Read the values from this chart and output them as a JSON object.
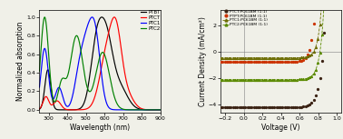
{
  "abs_xlabel": "Wavelength (nm)",
  "abs_ylabel": "Normalized absorption",
  "abs_xlim": [
    250,
    900
  ],
  "abs_ylim": [
    -0.03,
    1.08
  ],
  "jv_xlabel": "Voltage (V)",
  "jv_ylabel": "Current Density (mA/cm²)",
  "jv_xlim": [
    -0.25,
    1.05
  ],
  "jv_ylim": [
    -4.6,
    3.2
  ],
  "abs_legend": [
    "PTBT",
    "PTCT",
    "PTC1",
    "PTC2"
  ],
  "abs_colors": [
    "black",
    "red",
    "blue",
    "green"
  ],
  "jv_legend": [
    "PTCT:PC61BM (1:1)",
    "PTPT:PC61BM (1:1)",
    "PTC1:PC61BM (1:1)",
    "PTC2:PC61BM (1:1)"
  ],
  "jv_colors": [
    "#3b2314",
    "#cc3300",
    "#6b6b00",
    "#5a8a00"
  ],
  "background_color": "#f0f0e8"
}
